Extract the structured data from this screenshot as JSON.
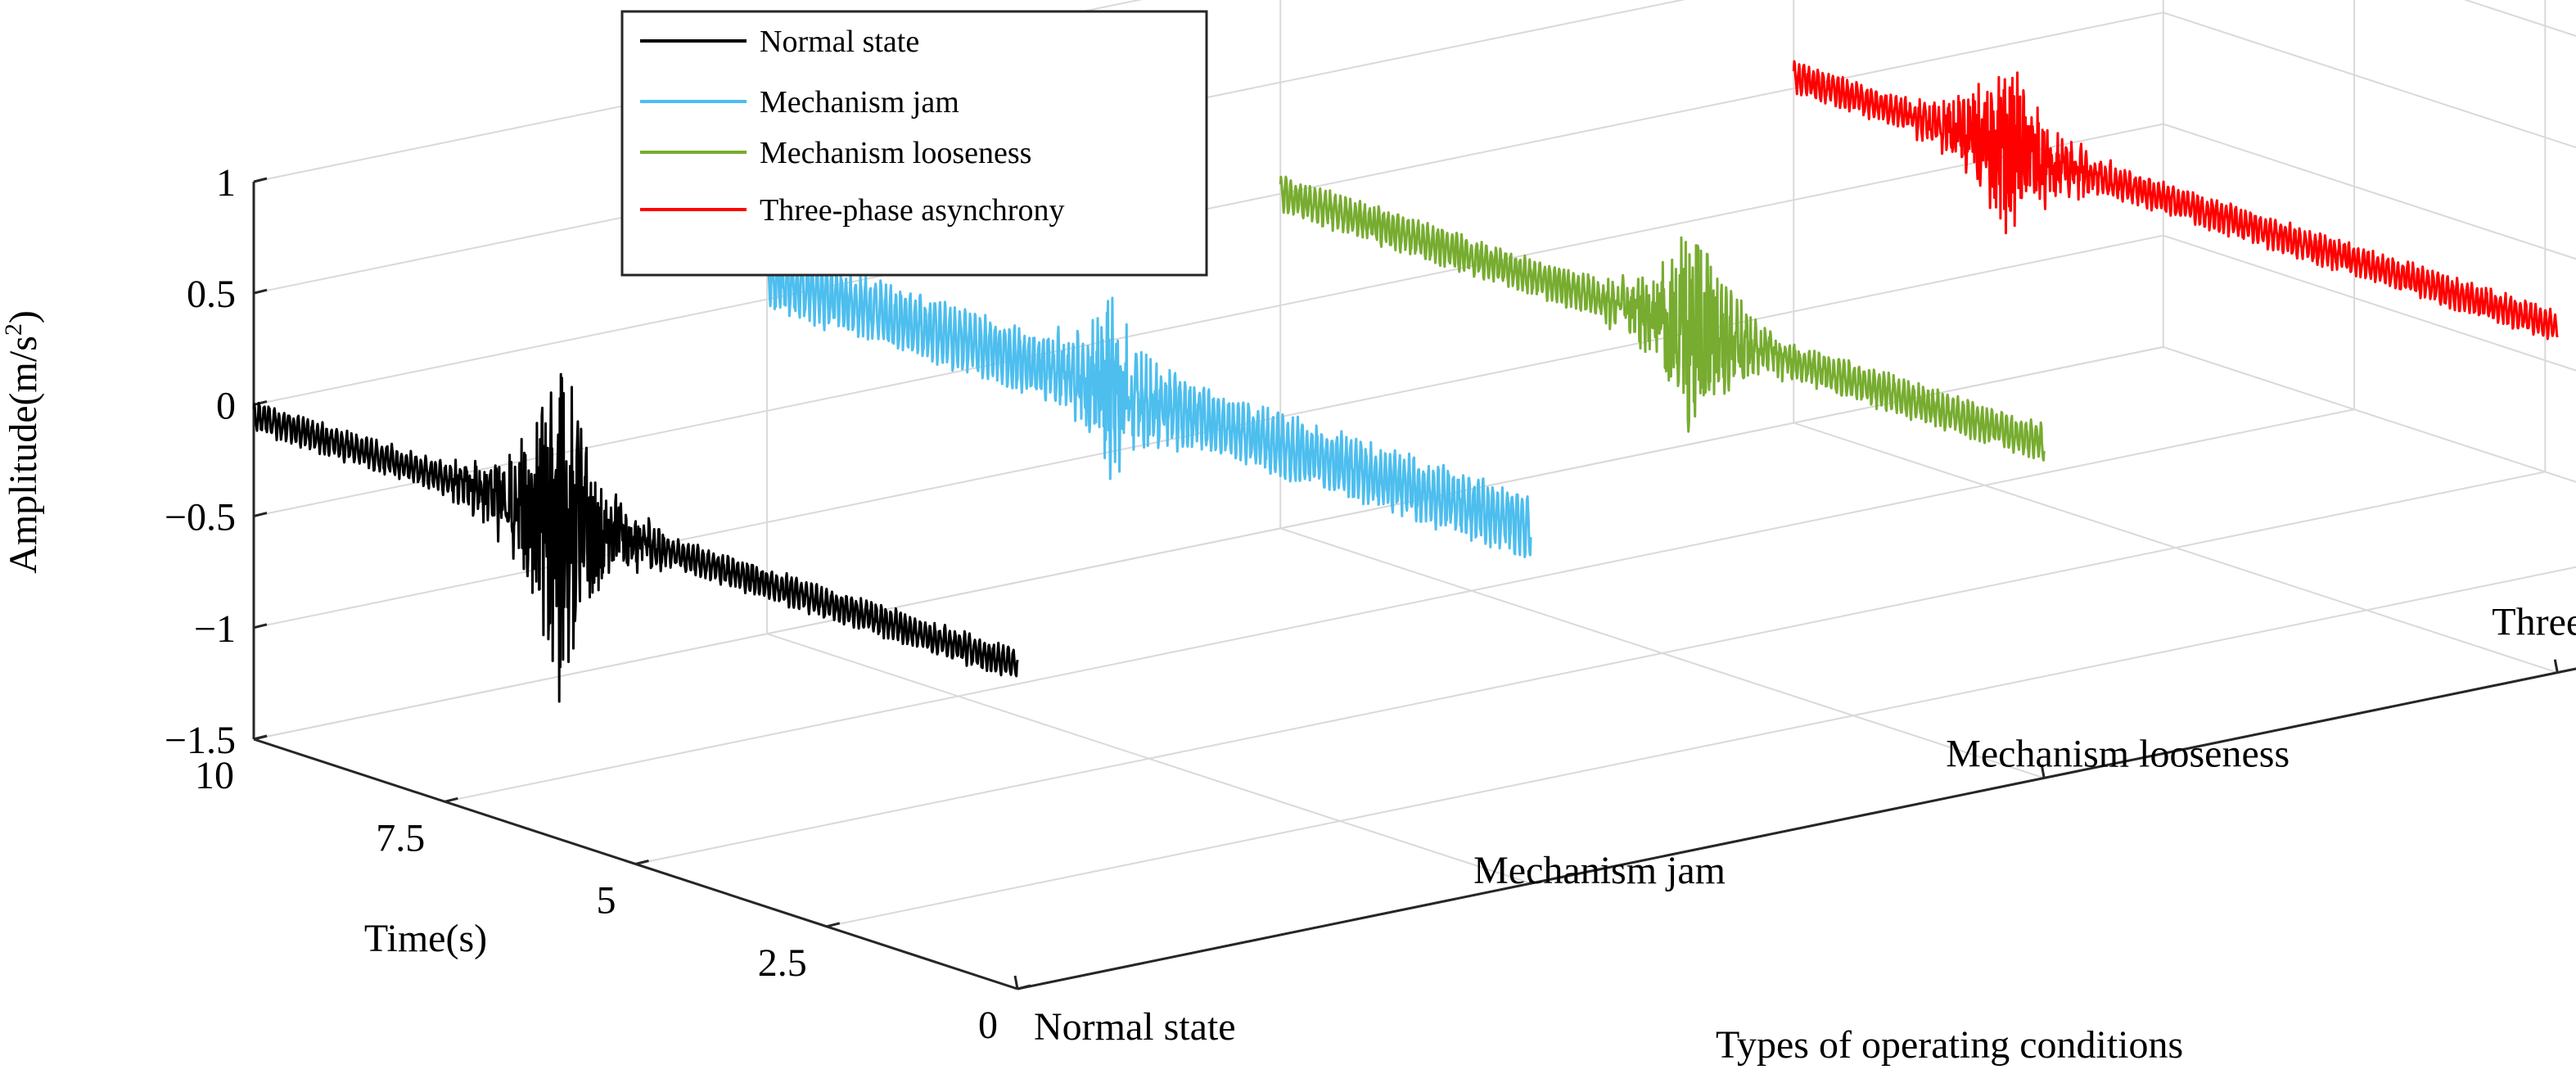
{
  "chart_data": {
    "type": "line",
    "projection": "3d",
    "title": "",
    "zlabel": "Amplitude(m/s",
    "zlabel_sup": "2",
    "zlabel_end": ")",
    "ylabel": "Time(s)",
    "xlabel": "Types of operating conditions",
    "zlim": [
      -1.5,
      1
    ],
    "z_ticks": [
      "1",
      "0.5",
      "0",
      "−0.5",
      "−1",
      "−1.5"
    ],
    "time_lim": [
      0,
      10
    ],
    "time_ticks": [
      "10",
      "7.5",
      "5",
      "2.5",
      "0"
    ],
    "categories": [
      "Normal state",
      "Mechanism jam",
      "Mechanism looseness",
      "Three-phase asynchrony"
    ],
    "grid": true,
    "legend_position": "top-left",
    "series": [
      {
        "name": "Normal state",
        "color": "#000000",
        "category": "Normal state",
        "baseline": -0.05,
        "ripple": 0.06,
        "burst_center": 6.0,
        "burst_amp": 0.8
      },
      {
        "name": "Mechanism jam",
        "color": "#4dbeee",
        "category": "Mechanism jam",
        "baseline": 0.1,
        "ripple": 0.12,
        "burst_center": 5.5,
        "burst_amp": 0.3
      },
      {
        "name": "Mechanism looseness",
        "color": "#77ac30",
        "category": "Mechanism looseness",
        "baseline": 0.0,
        "ripple": 0.07,
        "burst_center": 4.6,
        "burst_amp": 0.5
      },
      {
        "name": "Three-phase asynchrony",
        "color": "#ff0000",
        "category": "Three-phase asynchrony",
        "baseline": 0.05,
        "ripple": 0.06,
        "burst_center": 7.2,
        "burst_amp": 0.45
      }
    ]
  }
}
